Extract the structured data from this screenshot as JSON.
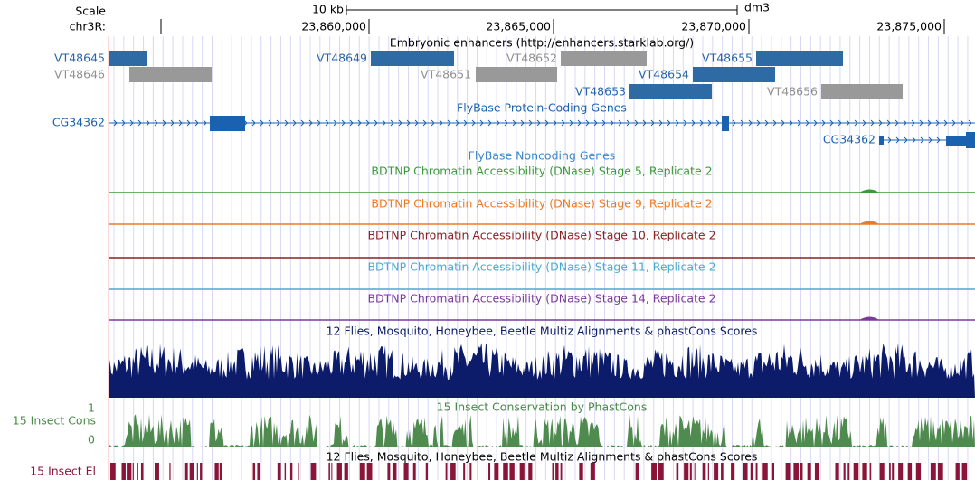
{
  "ruler": {
    "scale_label": "Scale",
    "chrom": "chr3R:",
    "scale_bar": "10 kb",
    "assembly": "dm3",
    "positions": [
      "23,860,000",
      "23,865,000",
      "23,870,000",
      "23,875,000"
    ]
  },
  "tracks": {
    "enhancers": {
      "title": "Embryonic enhancers (http://enhancers.starklab.org/)",
      "items": [
        "VT48645",
        "VT48646",
        "VT48649",
        "VT48652",
        "VT48651",
        "VT48654",
        "VT48655",
        "VT48653",
        "VT48656"
      ]
    },
    "genes": {
      "title": "FlyBase Protein-Coding Genes",
      "items": [
        "CG34362",
        "CG34362"
      ]
    },
    "noncoding": {
      "title": "FlyBase Noncoding Genes"
    },
    "dnase": [
      "BDTNP Chromatin Accessibility (DNase) Stage 5, Replicate 2",
      "BDTNP Chromatin Accessibility (DNase) Stage 9, Replicate 2",
      "BDTNP Chromatin Accessibility (DNase) Stage 10, Replicate 2",
      "BDTNP Chromatin Accessibility (DNase) Stage 11, Replicate 2",
      "BDTNP Chromatin Accessibility (DNase) Stage 14, Replicate 2"
    ],
    "multiz": {
      "title": "12 Flies, Mosquito, Honeybee, Beetle Multiz Alignments & phastCons Scores"
    },
    "phastcons": {
      "title": "15 Insect Conservation by PhastCons",
      "label": "15 Insect Cons",
      "ymax": "1",
      "ymin": "0"
    },
    "elements": {
      "title": "12 Flies, Mosquito, Honeybee, Beetle Multiz Alignments & phastCons Scores",
      "label": "15 Insect El"
    }
  }
}
